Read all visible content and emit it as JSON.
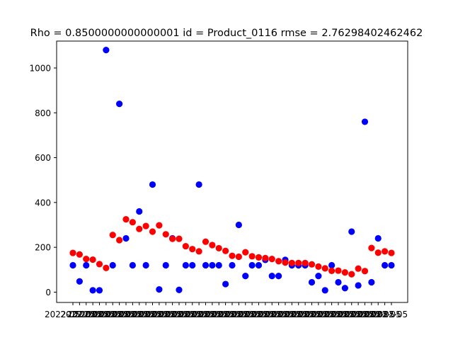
{
  "chart_data": {
    "type": "scatter",
    "title": "Rho = 0.8500000000000001 id = Product_0116 rmse = 2.76298402462462",
    "xlabel": "",
    "ylabel": "",
    "ylim": [
      -46,
      1120
    ],
    "yticks": [
      0,
      200,
      400,
      600,
      800,
      1000
    ],
    "grid": false,
    "colors": {
      "series_0": "#0000ff",
      "series_1": "#ff0000"
    },
    "x_tick_text": "2022-05",
    "series": [
      {
        "values": [
          120,
          48,
          120,
          8,
          8,
          1080,
          120,
          840,
          240,
          120,
          360,
          120,
          480,
          12,
          120,
          240,
          10,
          120,
          120,
          480,
          120,
          120,
          120,
          36,
          120,
          300,
          72,
          120,
          120,
          144,
          72,
          72,
          144,
          120,
          120,
          120,
          44,
          72,
          8,
          120,
          44,
          18,
          270,
          30,
          760,
          44,
          240,
          120,
          120
        ]
      },
      {
        "values": [
          175,
          168,
          148,
          145,
          125,
          108,
          255,
          232,
          325,
          312,
          282,
          295,
          270,
          298,
          258,
          238,
          238,
          205,
          192,
          182,
          225,
          210,
          196,
          184,
          162,
          158,
          178,
          160,
          155,
          152,
          148,
          138,
          132,
          130,
          130,
          130,
          124,
          114,
          106,
          95,
          96,
          88,
          80,
          105,
          94,
          197,
          176,
          182,
          175
        ]
      }
    ]
  }
}
